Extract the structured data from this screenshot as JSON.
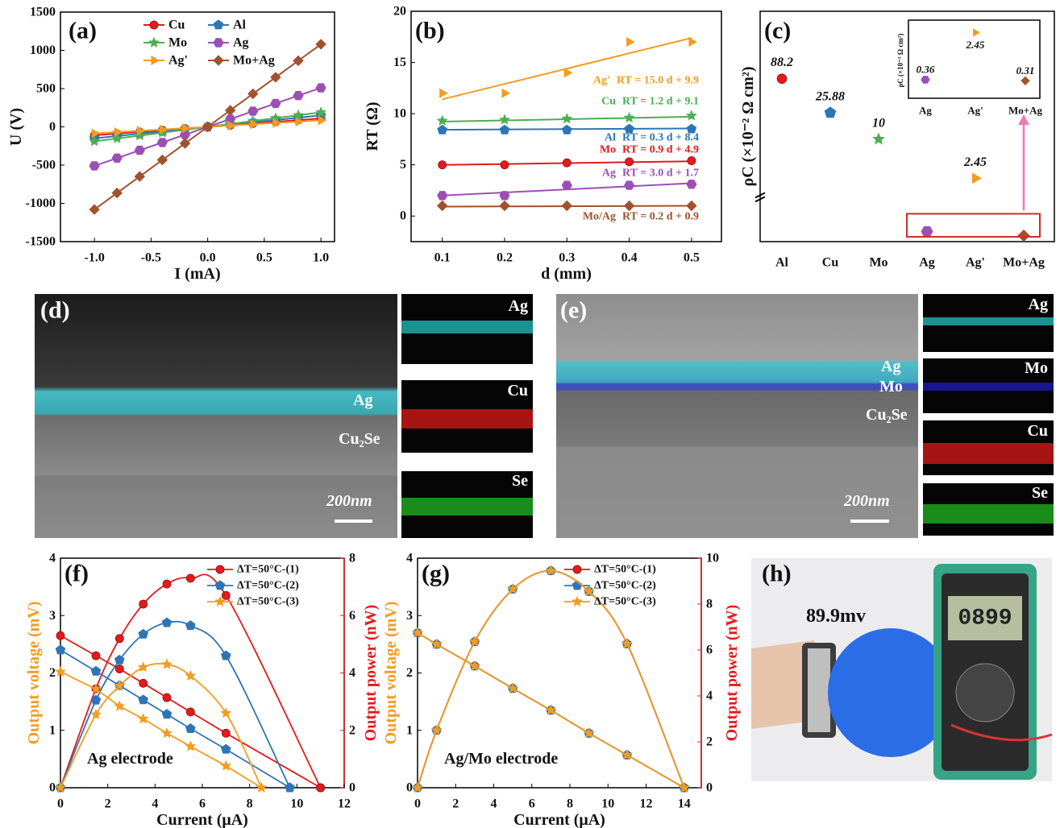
{
  "chart_data": [
    {
      "type": "line",
      "panel": "(a)",
      "x_label": "I (mA)",
      "y_label": "U (V)",
      "legend": "upper center",
      "x": [
        -1.0,
        -0.8,
        -0.6,
        -0.4,
        -0.2,
        0,
        0.2,
        0.4,
        0.6,
        0.8,
        1.0
      ],
      "series": [
        {
          "name": "Cu",
          "color": "#e41a1c",
          "marker": "circle",
          "values": [
            -110,
            -88,
            -66,
            -44,
            -22,
            0,
            22,
            44,
            66,
            88,
            110
          ]
        },
        {
          "name": "Al",
          "color": "#2e75b6",
          "marker": "pentagon",
          "values": [
            -150,
            -120,
            -90,
            -60,
            -30,
            0,
            30,
            60,
            90,
            120,
            150
          ]
        },
        {
          "name": "Mo",
          "color": "#4caf50",
          "marker": "star",
          "values": [
            -190,
            -152,
            -114,
            -76,
            -38,
            0,
            38,
            76,
            114,
            152,
            190
          ]
        },
        {
          "name": "Ag",
          "color": "#9b4fb5",
          "marker": "hexagon",
          "values": [
            -510,
            -408,
            -306,
            -204,
            -102,
            0,
            102,
            204,
            306,
            408,
            510
          ]
        },
        {
          "name": "Ag'",
          "color": "#f39c1f",
          "marker": "triangle",
          "values": [
            -85,
            -68,
            -51,
            -34,
            -17,
            0,
            17,
            34,
            51,
            68,
            85
          ]
        },
        {
          "name": "Mo+Ag",
          "color": "#a0522d",
          "marker": "diamond",
          "values": [
            -1080,
            -864,
            -648,
            -432,
            -216,
            0,
            216,
            432,
            648,
            864,
            1080
          ]
        }
      ],
      "xlim": [
        -1.3,
        1.12
      ],
      "ylim": [
        -1500,
        1500
      ],
      "xticks": [
        {
          "value": -1,
          "label": "-1.0"
        },
        -0.5,
        {
          "value": 0,
          "label": "0.0"
        },
        0.5,
        {
          "value": 1,
          "label": "1.0"
        }
      ],
      "yticks": [
        -1500,
        -1000,
        -500,
        0,
        500,
        1000,
        1500
      ]
    },
    {
      "type": "line",
      "panel": "(b)",
      "x_label": "d (mm)",
      "y_label": "RT (Ω)",
      "x": [
        0.1,
        0.2,
        0.3,
        0.4,
        0.5
      ],
      "series": [
        {
          "name": "Ag'",
          "color": "#f39c1f",
          "marker": "triangle",
          "values": [
            12,
            12,
            14,
            17,
            17
          ],
          "fit": {
            "label": "RT = 15.0 d + 9.9",
            "slope": 15.0,
            "intercept": 9.9
          }
        },
        {
          "name": "Cu",
          "color": "#4caf50",
          "marker": "star",
          "values": [
            9.3,
            9.4,
            9.5,
            9.6,
            9.8
          ],
          "fit": {
            "label": "RT = 1.2 d + 9.1",
            "slope": 1.2,
            "intercept": 9.1
          }
        },
        {
          "name": "Al",
          "color": "#2e75b6",
          "marker": "pentagon",
          "values": [
            8.4,
            8.4,
            8.4,
            8.5,
            8.5
          ],
          "fit": {
            "label": "RT = 0.3 d + 8.4",
            "slope": 0.3,
            "intercept": 8.4
          }
        },
        {
          "name": "Mo",
          "color": "#e41a1c",
          "marker": "circle",
          "values": [
            5,
            5,
            5.2,
            5.3,
            5.4
          ],
          "fit": {
            "label": "RT = 0.9 d + 4.9",
            "slope": 0.9,
            "intercept": 4.9
          }
        },
        {
          "name": "Ag",
          "color": "#9b4fb5",
          "marker": "hexagon",
          "values": [
            2,
            2,
            3,
            3,
            3.1
          ],
          "fit": {
            "label": "RT = 3.0 d + 1.7",
            "slope": 3.0,
            "intercept": 1.7
          }
        },
        {
          "name": "Mo/Ag",
          "color": "#a0522d",
          "marker": "diamond",
          "values": [
            1,
            1,
            1,
            1,
            1
          ],
          "fit": {
            "label": "RT = 0.2 d + 0.9",
            "slope": 0.2,
            "intercept": 0.9
          }
        }
      ],
      "xlim": [
        0.05,
        0.548
      ],
      "ylim": [
        -2.5,
        20
      ],
      "xticks": [
        0.1,
        0.2,
        0.3,
        0.4,
        0.5
      ],
      "yticks": [
        0,
        5,
        10,
        15,
        20
      ]
    },
    {
      "type": "scatter",
      "panel": "(c)",
      "y_label": "ρC (×10⁻² Ω cm²)",
      "log_scale": true,
      "axis_break": 1,
      "categories": [
        "Al",
        "Cu",
        "Mo",
        "Ag",
        "Ag'",
        "Mo+Ag"
      ],
      "values": [
        88.2,
        25.88,
        10,
        0.36,
        2.45,
        0.31
      ],
      "colors": [
        "#e41a1c",
        "#2e75b6",
        "#4caf50",
        "#9b4fb5",
        "#f39c1f",
        "#a0522d"
      ],
      "markers": [
        "circle",
        "pentagon",
        "star",
        "hexagon",
        "triangle",
        "diamond"
      ],
      "ylim": [
        0.25,
        1000
      ],
      "inset": {
        "y_label": "ρC (×10⁻² Ω cm²)",
        "categories": [
          "Ag",
          "Ag'",
          "Mo+Ag"
        ],
        "values": [
          0.36,
          2.45,
          0.31
        ],
        "colors": [
          "#9b4fb5",
          "#f39c1f",
          "#a0522d"
        ],
        "markers": [
          "hexagon",
          "triangle",
          "diamond"
        ],
        "ylim": [
          0,
          3
        ]
      }
    },
    {
      "type": "dual",
      "panel": "(f)",
      "x_label": "Current (μA)",
      "y_label": "Output voltage (mV)",
      "y2_label": "Output power (nW)",
      "y_color": "#f39c1f",
      "y2_color": "#e41a1c",
      "annotation": "Ag electrode",
      "series": [
        {
          "name": "ΔT=50°C-(1)",
          "color": "#e41a1c",
          "marker": "circle",
          "x": [
            0,
            1.5,
            2.5,
            3.5,
            4.5,
            5.5,
            7,
            11
          ],
          "values": [
            2.65,
            2.3,
            2.07,
            1.82,
            1.57,
            1.32,
            0.95,
            0
          ],
          "values_y2": [
            0,
            3.45,
            5.2,
            6.4,
            7.1,
            7.3,
            6.7,
            0
          ]
        },
        {
          "name": "ΔT=50°C-(2)",
          "color": "#2e75b6",
          "marker": "pentagon",
          "x": [
            0,
            1.5,
            2.5,
            3.5,
            4.5,
            5.5,
            7,
            9.7
          ],
          "values": [
            2.4,
            2.03,
            1.78,
            1.53,
            1.28,
            1.03,
            0.67,
            0
          ],
          "values_y2": [
            0,
            3.05,
            4.45,
            5.35,
            5.75,
            5.65,
            4.6,
            0
          ]
        },
        {
          "name": "ΔT=50°C-(3)",
          "color": "#f39c1f",
          "marker": "star",
          "x": [
            0,
            1.5,
            2.5,
            3.5,
            4.5,
            5.5,
            7,
            8.5
          ],
          "values": [
            2.02,
            1.72,
            1.42,
            1.2,
            0.95,
            0.72,
            0.38,
            0
          ],
          "values_y2": [
            0,
            2.55,
            3.55,
            4.2,
            4.3,
            3.9,
            2.6,
            0
          ]
        }
      ],
      "xlim": [
        0,
        12
      ],
      "ylim": [
        0,
        4
      ],
      "y2lim": [
        0,
        8
      ],
      "xticks": [
        0,
        2,
        4,
        6,
        8,
        10,
        12
      ],
      "yticks": [
        0,
        1,
        2,
        3,
        4
      ],
      "y2ticks": [
        0,
        2,
        4,
        6,
        8
      ]
    },
    {
      "type": "dual",
      "panel": "(g)",
      "x_label": "Current (μA)",
      "y_label": "Output voltage (mV)",
      "y2_label": "Output power (nW)",
      "y_color": "#f39c1f",
      "y2_color": "#e41a1c",
      "annotation": "Ag/Mo electrode",
      "series": [
        {
          "name": "ΔT=50°C-(1)",
          "color": "#e41a1c",
          "marker": "circle",
          "x": [
            0,
            1,
            3,
            5,
            7,
            9,
            11,
            14
          ],
          "values": [
            2.7,
            2.5,
            2.12,
            1.73,
            1.35,
            0.95,
            0.57,
            0
          ],
          "values_y2": [
            0,
            2.5,
            6.36,
            8.65,
            9.45,
            8.55,
            6.27,
            0
          ]
        },
        {
          "name": "ΔT=50°C-(2)",
          "color": "#2e75b6",
          "marker": "pentagon",
          "x": [
            0,
            1,
            3,
            5,
            7,
            9,
            11,
            14
          ],
          "values": [
            2.7,
            2.5,
            2.12,
            1.73,
            1.35,
            0.95,
            0.57,
            0
          ],
          "values_y2": [
            0,
            2.5,
            6.36,
            8.65,
            9.45,
            8.55,
            6.27,
            0
          ]
        },
        {
          "name": "ΔT=50°C-(3)",
          "color": "#f39c1f",
          "marker": "star",
          "x": [
            0,
            1,
            3,
            5,
            7,
            9,
            11,
            14
          ],
          "values": [
            2.7,
            2.5,
            2.12,
            1.73,
            1.35,
            0.95,
            0.57,
            0
          ],
          "values_y2": [
            0,
            2.5,
            6.36,
            8.65,
            9.45,
            8.55,
            6.27,
            0
          ]
        }
      ],
      "xlim": [
        0,
        14.9
      ],
      "ylim": [
        0,
        4
      ],
      "y2lim": [
        0,
        10
      ],
      "xticks": [
        0,
        2,
        4,
        6,
        8,
        10,
        12,
        14
      ],
      "yticks": [
        0,
        1,
        2,
        3,
        4
      ],
      "y2ticks": [
        0,
        2,
        4,
        6,
        8,
        10
      ]
    }
  ],
  "images": [
    {
      "panel": "(d)",
      "layers": [
        "Ag",
        "Cu₂Se"
      ],
      "scale_bar": "200nm",
      "maps": [
        "Ag",
        "Cu",
        "Se"
      ]
    },
    {
      "panel": "(e)",
      "layers": [
        "Ag",
        "Mo",
        "Cu₂Se"
      ],
      "scale_bar": "200nm",
      "maps": [
        "Ag",
        "Mo",
        "Cu",
        "Se"
      ]
    }
  ],
  "photo": {
    "panel": "(h)",
    "reading": "89.9mv",
    "display": "0899"
  }
}
